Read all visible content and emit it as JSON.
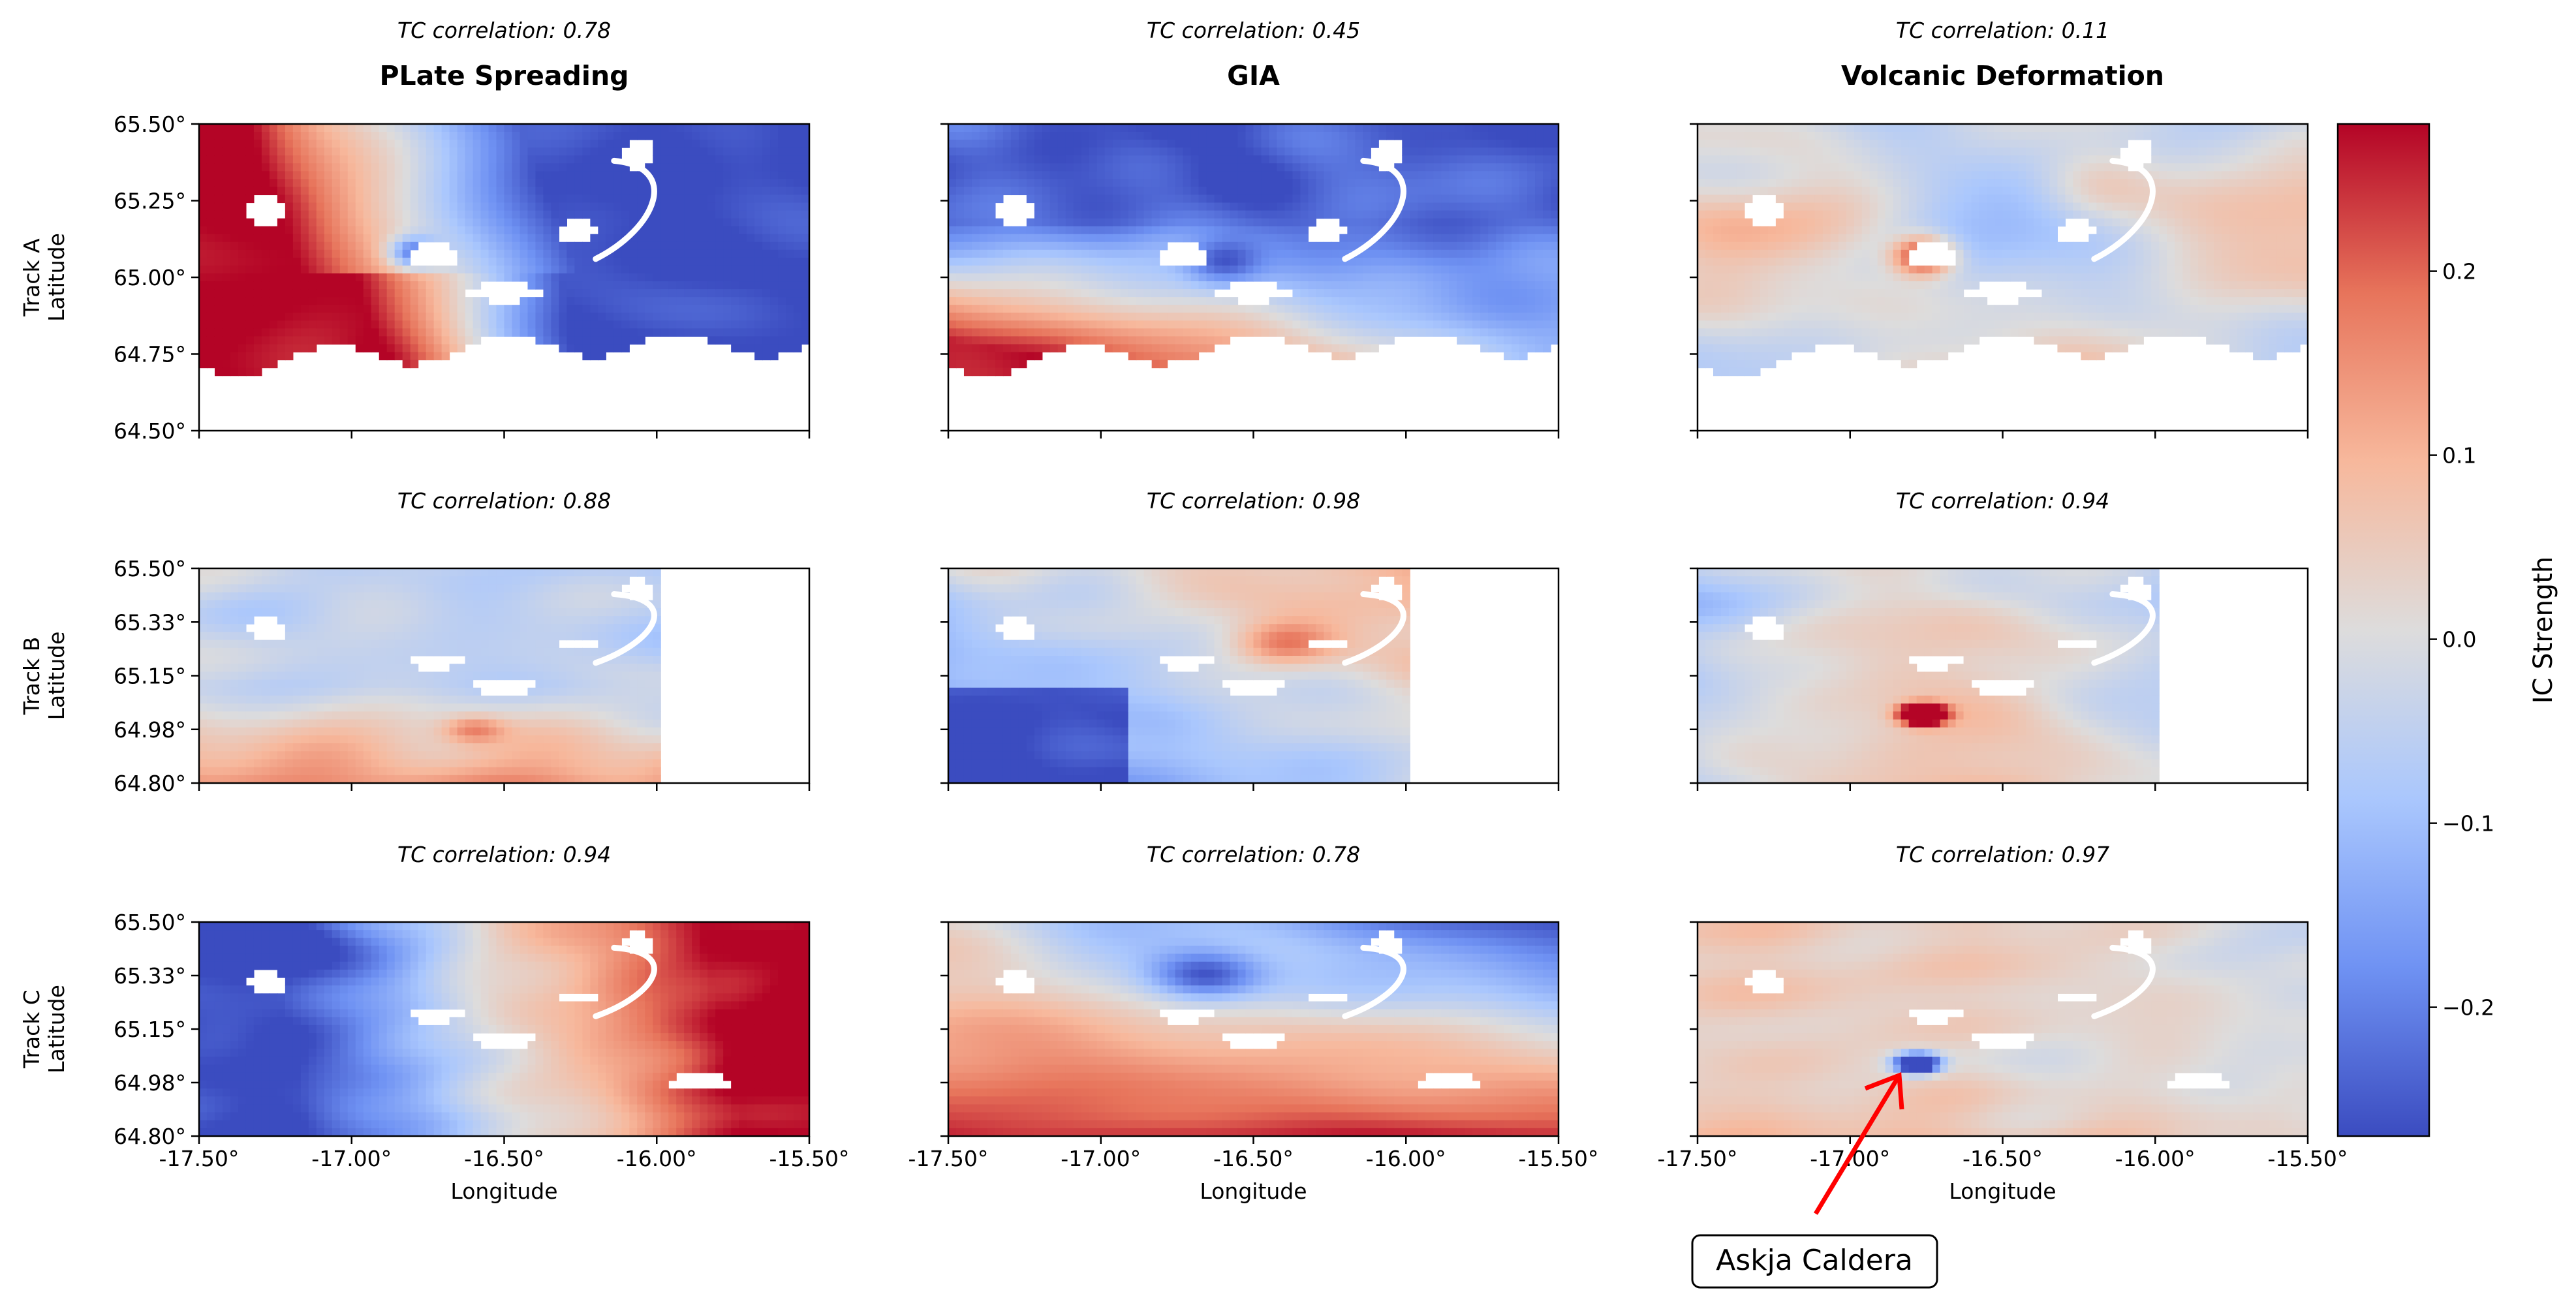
{
  "chart_data": {
    "type": "heatmap",
    "columns": [
      "PLate Spreading",
      "GIA",
      "Volcanic Deformation"
    ],
    "rows": [
      {
        "name": "Track A",
        "ylabel": "Latitude",
        "yticks": [
          "65.50°",
          "65.25°",
          "65.00°",
          "64.75°",
          "64.50°"
        ],
        "ylim": [
          64.5,
          65.5
        ]
      },
      {
        "name": "Track B",
        "ylabel": "Latitude",
        "yticks": [
          "65.50°",
          "65.33°",
          "65.15°",
          "64.98°",
          "64.80°"
        ],
        "ylim": [
          64.8,
          65.5
        ]
      },
      {
        "name": "Track C",
        "ylabel": "Latitude",
        "yticks": [
          "65.50°",
          "65.33°",
          "65.15°",
          "64.98°",
          "64.80°"
        ],
        "ylim": [
          64.8,
          65.5
        ]
      }
    ],
    "tc_correlations": [
      [
        "TC correlation: 0.78",
        "TC correlation: 0.45",
        "TC correlation: 0.11"
      ],
      [
        "TC correlation: 0.88",
        "TC correlation: 0.98",
        "TC correlation: 0.94"
      ],
      [
        "TC correlation: 0.94",
        "TC correlation: 0.78",
        "TC correlation: 0.97"
      ]
    ],
    "xlabel": "Longitude",
    "xticks": [
      "-17.50°",
      "-17.00°",
      "-16.50°",
      "-16.00°",
      "-15.50°"
    ],
    "xlim": [
      -17.5,
      -15.5
    ],
    "colorbar": {
      "label": "IC Strength",
      "ticks": [
        "0.2",
        "0.1",
        "0.0",
        "−0.1",
        "−0.2"
      ],
      "tick_values": [
        0.2,
        0.1,
        0.0,
        -0.1,
        -0.2
      ],
      "range": [
        -0.27,
        0.28
      ],
      "colormap": "coolwarm"
    },
    "annotation": {
      "text": "Askja Caldera",
      "panel": "Track C / Volcanic Deformation",
      "target_lon": -16.85,
      "target_lat": 65.0,
      "arrow_color": "#ff0000"
    },
    "cmap_colors": [
      "#3b4cc0",
      "#6f92f3",
      "#aac7fd",
      "#dddcdc",
      "#f7b89c",
      "#e7745b",
      "#b40426"
    ]
  }
}
